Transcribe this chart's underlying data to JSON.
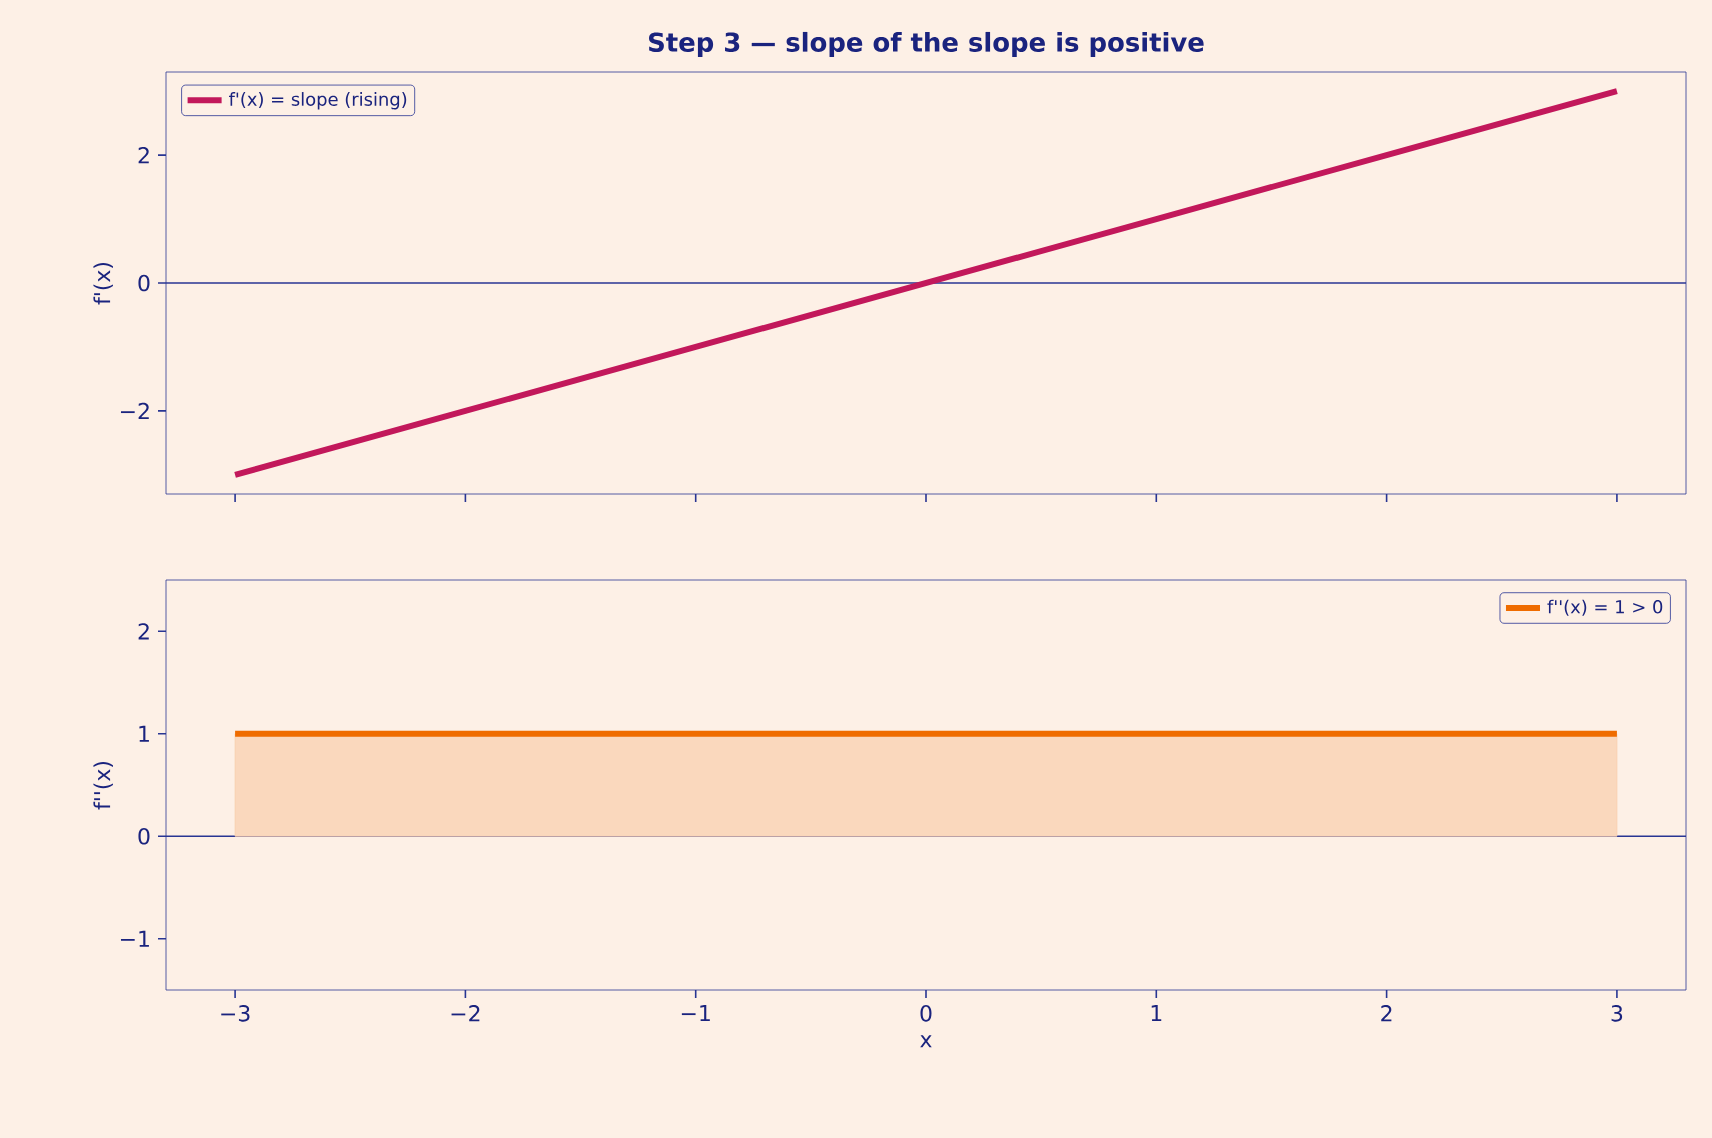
{
  "chart_data": [
    {
      "type": "line",
      "title": "Step 3 — slope of the slope is positive",
      "ylabel": "f'(x)",
      "series": [
        {
          "name": "f'(x) = slope (rising)",
          "color": "#c2185b",
          "x": [
            -3,
            -2,
            -1,
            0,
            1,
            2,
            3
          ],
          "values": [
            -3,
            -2,
            -1,
            0,
            1,
            2,
            3
          ]
        }
      ],
      "xlim": [
        -3.3,
        3.3
      ],
      "ylim": [
        -3.3,
        3.3
      ],
      "xticks": [
        {
          "value": -3,
          "label": null
        },
        {
          "value": -2,
          "label": null
        },
        {
          "value": -1,
          "label": null
        },
        {
          "value": 0,
          "label": null
        },
        {
          "value": 1,
          "label": null
        },
        {
          "value": 2,
          "label": null
        },
        {
          "value": 3,
          "label": null
        }
      ],
      "yticks": [
        {
          "value": -2,
          "label": "−2"
        },
        0,
        2
      ],
      "ref_lines": [
        {
          "axis": "y",
          "value": 0,
          "color": "#283593"
        }
      ],
      "legend": "top left",
      "tick_labels": "y"
    },
    {
      "type": "area",
      "xlabel": "x",
      "ylabel": "f''(x)",
      "series": [
        {
          "name": "f''(x) = 1 > 0",
          "color": "#ef6c00",
          "x": [
            -3,
            -2,
            -1,
            0,
            1,
            2,
            3
          ],
          "values": [
            1,
            1,
            1,
            1,
            1,
            1,
            1
          ]
        }
      ],
      "xlim": [
        -3.3,
        3.3
      ],
      "ylim": [
        -1.5,
        2.5
      ],
      "xticks": [
        {
          "value": -3,
          "label": "−3"
        },
        {
          "value": -2,
          "label": "−2"
        },
        {
          "value": -1,
          "label": "−1"
        },
        0,
        1,
        2,
        3
      ],
      "yticks": [
        {
          "value": -1,
          "label": "−1"
        },
        0,
        1,
        2
      ],
      "ref_lines": [
        {
          "axis": "y",
          "value": 0,
          "color": "#283593"
        }
      ],
      "legend": "top right"
    }
  ]
}
